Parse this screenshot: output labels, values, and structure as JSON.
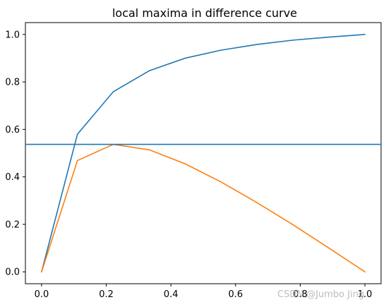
{
  "watermark": "CSDN @Jumbo Jing",
  "chart_data": {
    "type": "line",
    "title": "local maxima in difference curve",
    "xlabel": "",
    "ylabel": "",
    "xlim": [
      -0.05,
      1.05
    ],
    "ylim": [
      -0.05,
      1.05
    ],
    "xticks": [
      0.0,
      0.2,
      0.4,
      0.6,
      0.8,
      1.0
    ],
    "xtick_labels": [
      "0.0",
      "0.2",
      "0.4",
      "0.6",
      "0.8",
      "1.0"
    ],
    "yticks": [
      0.0,
      0.2,
      0.4,
      0.6,
      0.8,
      1.0
    ],
    "ytick_labels": [
      "0.0",
      "0.2",
      "0.4",
      "0.6",
      "0.8",
      "1.0"
    ],
    "grid": false,
    "series": [
      {
        "color": "#1f77b4",
        "x": [
          0.0,
          0.111,
          0.222,
          0.333,
          0.444,
          0.556,
          0.667,
          0.778,
          0.889,
          1.0
        ],
        "y": [
          0.0,
          0.58,
          0.759,
          0.847,
          0.9,
          0.934,
          0.958,
          0.976,
          0.989,
          1.0
        ]
      },
      {
        "color": "#ff7f0e",
        "x": [
          0.0,
          0.111,
          0.222,
          0.333,
          0.444,
          0.556,
          0.667,
          0.778,
          0.889,
          1.0
        ],
        "y": [
          0.0,
          0.469,
          0.537,
          0.514,
          0.455,
          0.378,
          0.291,
          0.198,
          0.1,
          0.0
        ]
      },
      {
        "color": "#1f77b4",
        "x": [
          -0.05,
          1.05
        ],
        "y": [
          0.537,
          0.537
        ]
      }
    ]
  }
}
